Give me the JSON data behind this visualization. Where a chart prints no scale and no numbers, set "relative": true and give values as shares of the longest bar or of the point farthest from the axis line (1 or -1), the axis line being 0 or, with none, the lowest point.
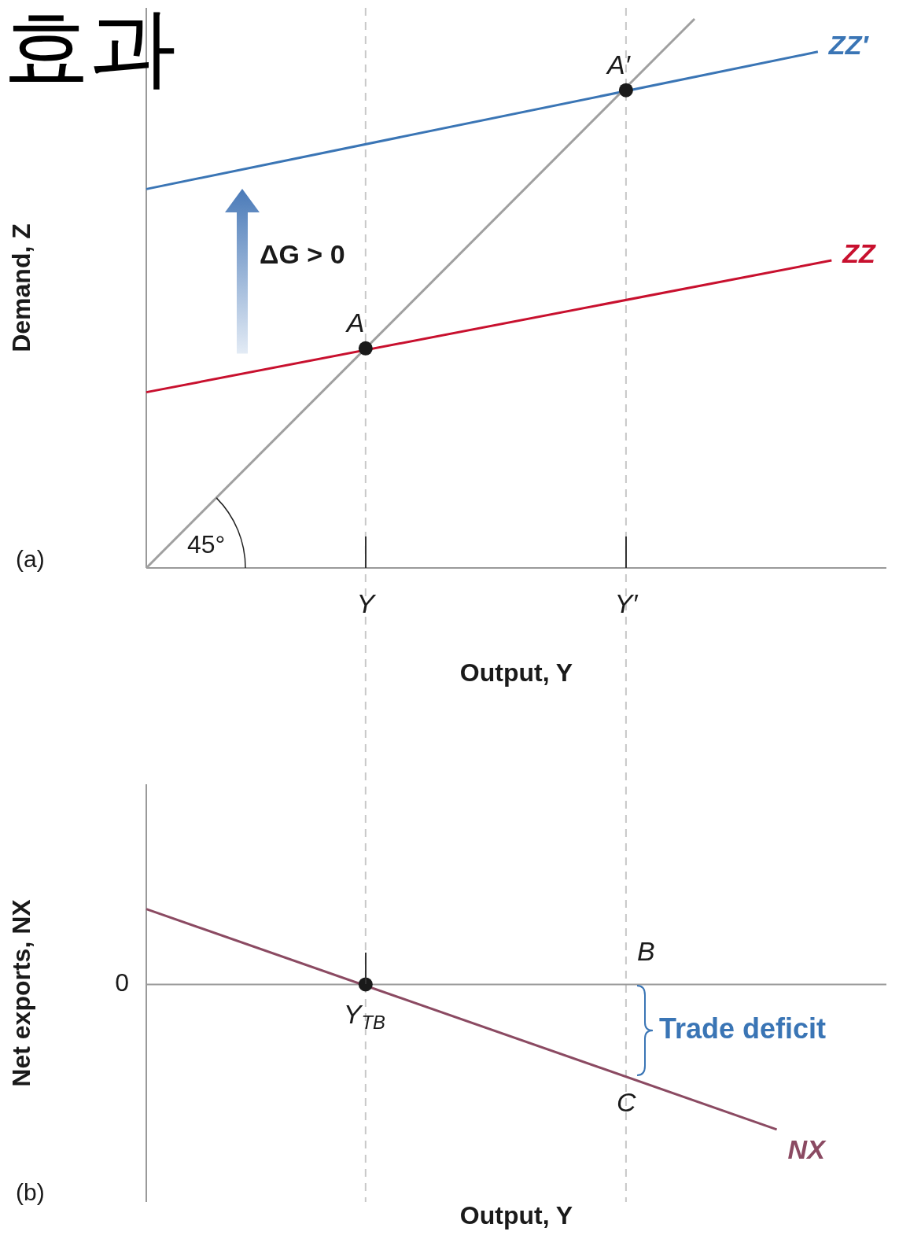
{
  "chart_data": [
    {
      "type": "line",
      "title": "효과",
      "relative": true,
      "legend": false,
      "xlabel": "Output, Y",
      "ylabel": "Demand, Z",
      "categories": [
        null,
        null,
        null,
        null,
        null,
        null,
        null,
        null,
        null,
        null,
        null,
        null,
        null,
        null,
        null,
        null,
        "Y",
        null,
        null,
        null,
        null,
        null,
        null,
        null,
        null,
        null,
        null,
        null,
        null,
        null,
        null,
        null,
        null,
        null,
        null,
        "Y′",
        null,
        null,
        null,
        null,
        null,
        null,
        null,
        null,
        null,
        null,
        null,
        null,
        null,
        null,
        null,
        null,
        null,
        null,
        null
      ],
      "series": [
        {
          "color": "#a0a0a0",
          "values": [
            0,
            null,
            null,
            null,
            null,
            null,
            null,
            null,
            null,
            null,
            null,
            null,
            null,
            null,
            null,
            null,
            null,
            null,
            null,
            null,
            null,
            null,
            null,
            null,
            null,
            null,
            null,
            null,
            null,
            null,
            null,
            null,
            null,
            null,
            null,
            null,
            null,
            null,
            null,
            null,
            1,
            null,
            null,
            null,
            null,
            null,
            null,
            null,
            null,
            null,
            null,
            null,
            null,
            null,
            null
          ]
        },
        {
          "name": "ZZ",
          "color": "#c8102e",
          "values": [
            0.32,
            null,
            null,
            null,
            null,
            null,
            null,
            null,
            null,
            null,
            null,
            null,
            null,
            null,
            null,
            null,
            null,
            null,
            null,
            null,
            null,
            null,
            null,
            null,
            null,
            null,
            null,
            null,
            null,
            null,
            null,
            null,
            null,
            null,
            null,
            null,
            null,
            null,
            null,
            null,
            null,
            null,
            null,
            null,
            null,
            null,
            null,
            null,
            null,
            null,
            0.56,
            null,
            null,
            null,
            null
          ]
        },
        {
          "name": "ZZ′",
          "color": "#3a75b5",
          "values": [
            0.69,
            null,
            null,
            null,
            null,
            null,
            null,
            null,
            null,
            null,
            null,
            null,
            null,
            null,
            null,
            null,
            null,
            null,
            null,
            null,
            null,
            null,
            null,
            null,
            null,
            null,
            null,
            null,
            null,
            null,
            null,
            null,
            null,
            null,
            null,
            null,
            null,
            null,
            null,
            null,
            null,
            null,
            null,
            null,
            null,
            null,
            null,
            null,
            null,
            0.94,
            null,
            null,
            null,
            null,
            null
          ]
        },
        {
          "type": "scatter",
          "marker": "circle",
          "color": "#1a1a1a",
          "values": [
            null,
            null,
            null,
            null,
            null,
            null,
            null,
            null,
            null,
            null,
            null,
            null,
            null,
            null,
            null,
            null,
            0.4,
            null,
            null,
            null,
            null,
            null,
            null,
            null,
            null,
            null,
            null,
            null,
            null,
            null,
            null,
            null,
            null,
            null,
            null,
            0.87,
            null,
            null,
            null,
            null,
            null,
            null,
            null,
            null,
            null,
            null,
            null,
            null,
            null,
            null,
            null,
            null,
            null,
            null,
            null
          ]
        }
      ],
      "ref_lines": [
        {
          "axis": "x",
          "value": "Y",
          "color": "#c8c8c8",
          "line_style": "dashed"
        },
        {
          "axis": "x",
          "value": "Y′",
          "color": "#c8c8c8",
          "line_style": "dashed"
        }
      ],
      "annotations": [
        {
          "text": "A",
          "y": 0.4
        },
        {
          "text": "A′",
          "y": 0.87
        },
        "ΔG > 0",
        "45°",
        "(a)"
      ]
    },
    {
      "type": "line",
      "relative": true,
      "legend": false,
      "xlabel": "Output, Y",
      "ylabel": "Net exports, NX",
      "categories": [
        null,
        null,
        null,
        null,
        null,
        null,
        null,
        null,
        null,
        null,
        null,
        null,
        null,
        null,
        null,
        null,
        null,
        null,
        null,
        null,
        null,
        null,
        null,
        null,
        null,
        null,
        null,
        null,
        null,
        null,
        null,
        null,
        null,
        null,
        null,
        null,
        null,
        null,
        null,
        null,
        null,
        null,
        null,
        null,
        null,
        null,
        null,
        null,
        null,
        null,
        null,
        null,
        null,
        null,
        null
      ],
      "series": [
        {
          "name": "NX",
          "color": "#8b4a62",
          "values": [
            0.52,
            null,
            null,
            null,
            null,
            null,
            null,
            null,
            null,
            null,
            null,
            null,
            null,
            null,
            null,
            null,
            null,
            null,
            null,
            null,
            null,
            null,
            null,
            null,
            null,
            null,
            null,
            null,
            null,
            null,
            null,
            null,
            null,
            null,
            null,
            null,
            null,
            null,
            null,
            null,
            null,
            null,
            null,
            null,
            null,
            null,
            -1,
            null,
            null,
            null,
            null,
            null,
            null,
            null,
            null
          ]
        },
        {
          "type": "scatter",
          "marker": "circle",
          "color": "#1a1a1a",
          "values": [
            null,
            null,
            null,
            null,
            null,
            null,
            null,
            null,
            null,
            null,
            null,
            null,
            null,
            null,
            null,
            null,
            0,
            null,
            null,
            null,
            null,
            null,
            null,
            null,
            null,
            null,
            null,
            null,
            null,
            null,
            null,
            null,
            null,
            null,
            null,
            null,
            null,
            null,
            null,
            null,
            null,
            null,
            null,
            null,
            null,
            null,
            null,
            null,
            null,
            null,
            null,
            null,
            null,
            null,
            null
          ]
        }
      ],
      "annotations": [
        "0",
        {
          "text": "Y$_{TB}$",
          "y": 0
        },
        "B",
        "C",
        "Trade deficit",
        "(b)"
      ]
    }
  ]
}
